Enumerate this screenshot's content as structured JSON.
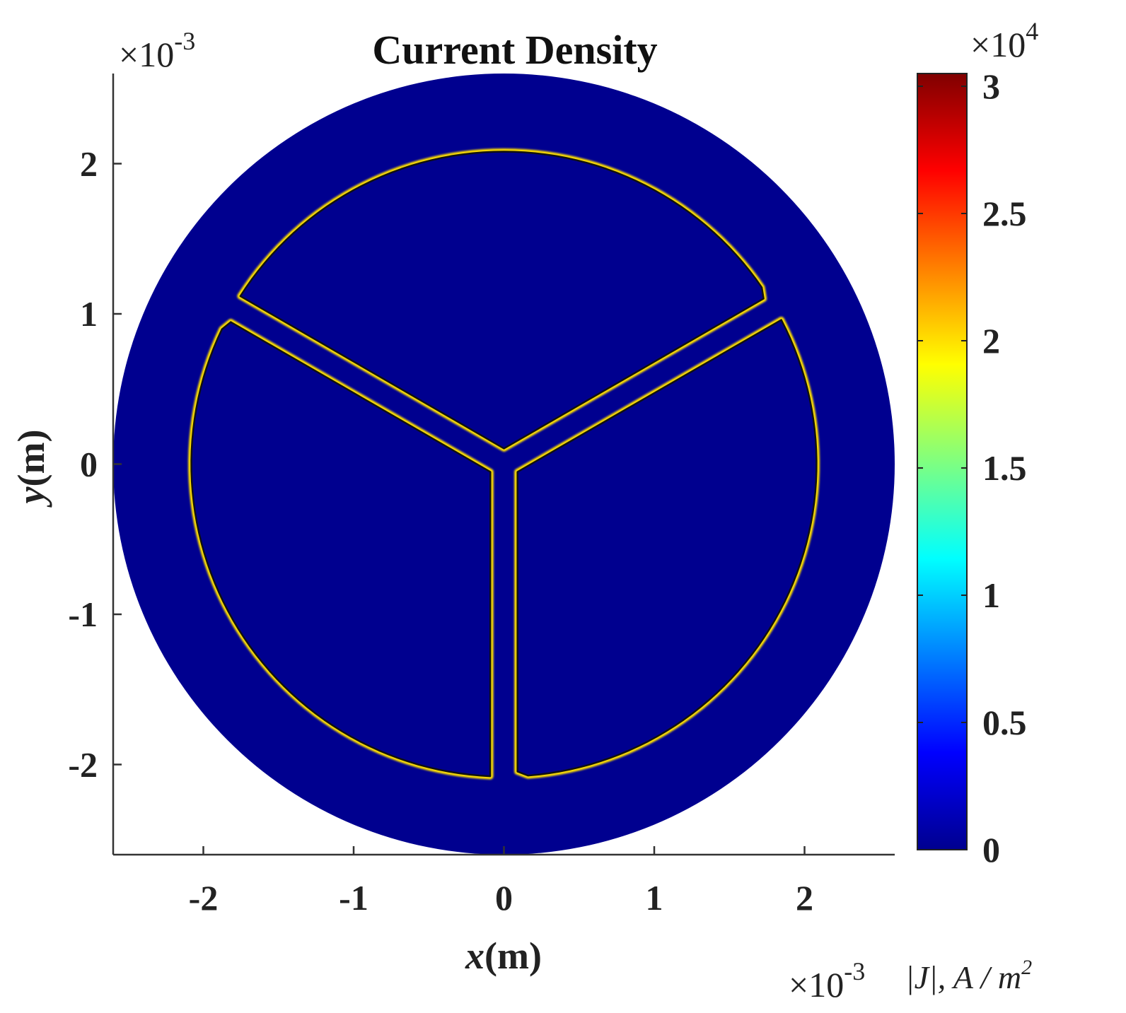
{
  "chart_data": {
    "type": "heatmap",
    "title": "Current Density",
    "xlabel_var": "x",
    "xlabel_unit": "(m)",
    "ylabel_var": "y",
    "ylabel_unit": "(m)",
    "x_exponent_mult": "×10",
    "x_exponent_pow": "-3",
    "y_exponent_mult": "×10",
    "y_exponent_pow": "-3",
    "xlim": [
      -2.6,
      2.6
    ],
    "ylim": [
      -2.6,
      2.6
    ],
    "x_ticks": [
      -2,
      -1,
      0,
      1,
      2
    ],
    "x_tick_labels": [
      "-2",
      "-1",
      "0",
      "1",
      "2"
    ],
    "y_ticks": [
      2,
      1,
      0,
      -1,
      -2
    ],
    "y_tick_labels": [
      "2",
      "1",
      "0",
      "-1",
      "-2"
    ],
    "colorbar": {
      "label": "|J|,  A / m",
      "label_sup": "2",
      "exponent_mult": "×10",
      "exponent_pow": "4",
      "range": [
        0,
        3.05
      ],
      "ticks": [
        0,
        0.5,
        1,
        1.5,
        2,
        2.5,
        3
      ],
      "tick_labels": [
        "0",
        "0.5",
        "1",
        "1.5",
        "2",
        "2.5",
        "3"
      ],
      "colormap": "jet"
    },
    "domain": {
      "outer_radius": 2.6,
      "background_value": 0,
      "conductor_outer_radius": 2.08,
      "gap_half_width": 0.09,
      "conductor_sectors": [
        {
          "name": "upper",
          "center_angle_deg": 90
        },
        {
          "name": "lower-left",
          "center_angle_deg": 210
        },
        {
          "name": "lower-right",
          "center_angle_deg": 330
        }
      ],
      "edge_peak_value": 2.0
    }
  }
}
